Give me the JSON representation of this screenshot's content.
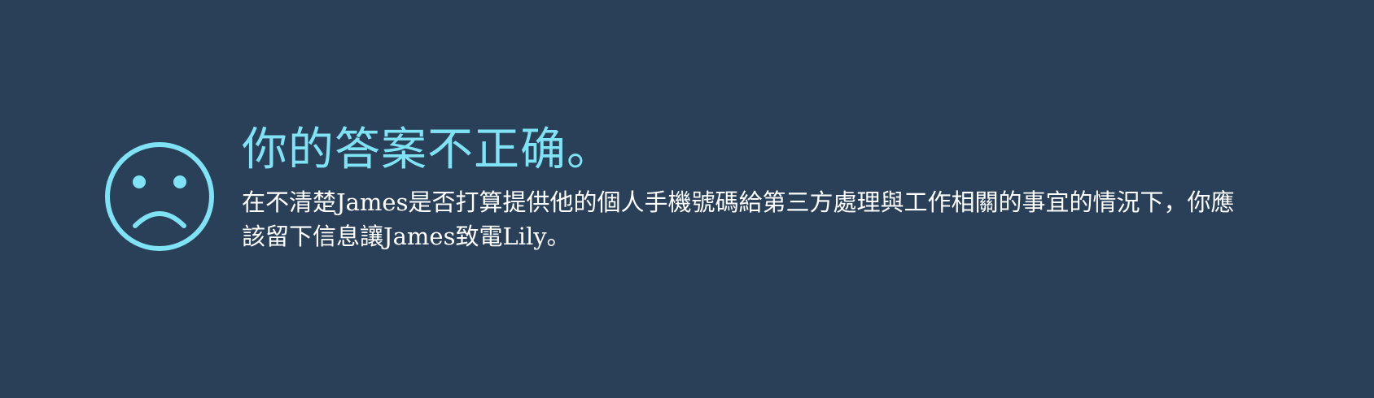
{
  "feedback": {
    "status": "incorrect",
    "icon": "sad-face-icon",
    "title": "你的答案不正确。",
    "message": "在不清楚James是否打算提供他的個人手機號碼給第三方處理與工作相關的事宜的情況下，你應該留下信息讓James致電Lily。"
  },
  "colors": {
    "background": "#2a4058",
    "accent": "#7fe3f5",
    "text": "#ffffff"
  }
}
